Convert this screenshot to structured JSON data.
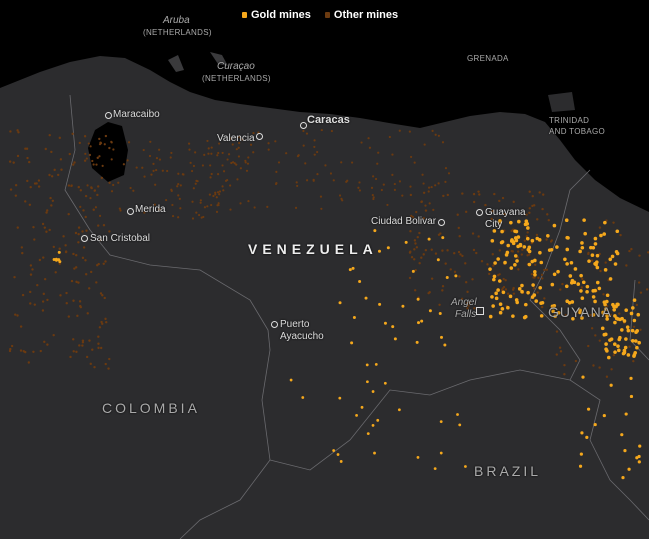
{
  "legend": {
    "gold_label": "Gold mines",
    "other_label": "Other mines",
    "gold_color": "#f5a81c",
    "other_color": "#6b3a10"
  },
  "labels": {
    "aruba": "Aruba",
    "aruba_country": "(NETHERLANDS)",
    "curacao": "Curaçao",
    "curacao_country": "(NETHERLANDS)",
    "grenada": "GRENADA",
    "trinidad_1": "TRINIDAD",
    "trinidad_2": "AND TOBAGO",
    "venezuela": "VENEZUELA",
    "colombia": "COLOMBIA",
    "brazil": "BRAZIL",
    "guyana": "GUYANA",
    "angel_falls_1": "Angel",
    "angel_falls_2": "Falls"
  },
  "cities": {
    "maracaibo": "Maracaibo",
    "valencia": "Valencia",
    "caracas": "Caracas",
    "merida": "Merida",
    "san_cristobal": "San Cristobal",
    "ciudad_bolivar": "Ciudad Bolivar",
    "guayana_1": "Guayana",
    "guayana_2": "City",
    "puerto_ayacucho_1": "Puerto",
    "puerto_ayacucho_2": "Ayacucho"
  },
  "colors": {
    "land": "#2c2c2e",
    "sea": "#000000",
    "border": "#6a6a6e"
  }
}
